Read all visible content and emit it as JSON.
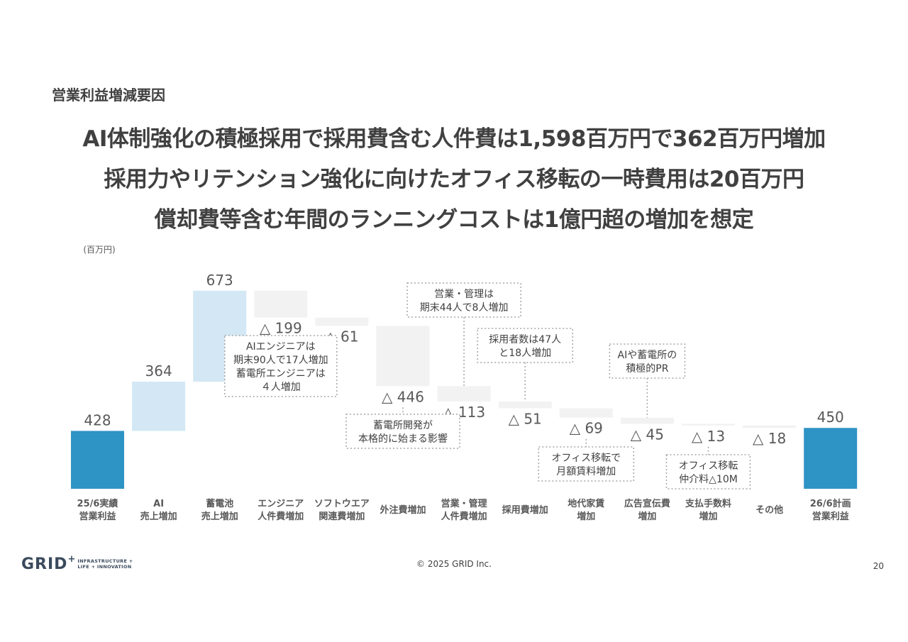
{
  "section_label": "営業利益増減要因",
  "headline": [
    "AI体制強化の積極採用で採用費含む人件費は1,598百万円で362百万円増加",
    "採用力やリテンション強化に向けたオフィス移転の一時費用は20百万円",
    "償却費等含む年間のランニングコストは1億円超の増加を想定"
  ],
  "chart_data": {
    "type": "bar",
    "subtype": "waterfall",
    "unit_label": "(百万円)",
    "ylim": [
      0,
      1100
    ],
    "colors": {
      "total": "#2e93c5",
      "increase": "#d3e8f4",
      "decrease": "#f2f2f2"
    },
    "categories": [
      [
        "25/6実績",
        "営業利益"
      ],
      [
        "AI",
        "売上増加"
      ],
      [
        "蓄電池",
        "売上増加"
      ],
      [
        "エンジニア",
        "人件費増加"
      ],
      [
        "ソフトウエア",
        "関連費増加"
      ],
      [
        "外注費増加"
      ],
      [
        "営業・管理",
        "人件費増加"
      ],
      [
        "採用費増加"
      ],
      [
        "地代家賃",
        "増加"
      ],
      [
        "広告宣伝費",
        "増加"
      ],
      [
        "支払手数料",
        "増加"
      ],
      [
        "その他"
      ],
      [
        "26/6計画",
        "営業利益"
      ]
    ],
    "values": [
      428,
      364,
      673,
      -199,
      -61,
      -446,
      -113,
      -51,
      -69,
      -45,
      -13,
      -18,
      450
    ],
    "kinds": [
      "total",
      "increase",
      "increase",
      "decrease",
      "decrease",
      "decrease",
      "decrease",
      "decrease",
      "decrease",
      "decrease",
      "decrease",
      "decrease",
      "total"
    ],
    "value_labels": [
      "428",
      "364",
      "673",
      "△ 199",
      "△ 61",
      "△ 446",
      "△ 113",
      "△ 51",
      "△ 69",
      "△ 45",
      "△ 13",
      "△ 18",
      "450"
    ],
    "annotations": [
      {
        "bar": 3,
        "position": "below",
        "lines": [
          "AIエンジニアは",
          "期末90人で17人増加",
          "蓄電所エンジニアは",
          "４人増加"
        ]
      },
      {
        "bar": 5,
        "position": "below",
        "lines": [
          "蓄電所開発が",
          "本格的に始まる影響"
        ]
      },
      {
        "bar": 6,
        "position": "above",
        "lines": [
          "営業・管理は",
          "期末44人で8人増加"
        ]
      },
      {
        "bar": 7,
        "position": "above",
        "lines": [
          "採用者数は47人",
          "と18人増加"
        ]
      },
      {
        "bar": 8,
        "position": "below",
        "lines": [
          "オフィス移転で",
          "月額賃料増加"
        ]
      },
      {
        "bar": 9,
        "position": "above",
        "lines": [
          "AIや蓄電所の",
          "積極的PR"
        ]
      },
      {
        "bar": 10,
        "position": "below",
        "lines": [
          "オフィス移転",
          "仲介料△10M"
        ]
      }
    ]
  },
  "footer": {
    "copyright": "© 2025 GRID Inc.",
    "page_number": "20",
    "logo_main": "GRID",
    "logo_plus": "+",
    "logo_sub_1": "INFRASTRUCTURE +",
    "logo_sub_2": "LIFE + INNOVATION"
  }
}
